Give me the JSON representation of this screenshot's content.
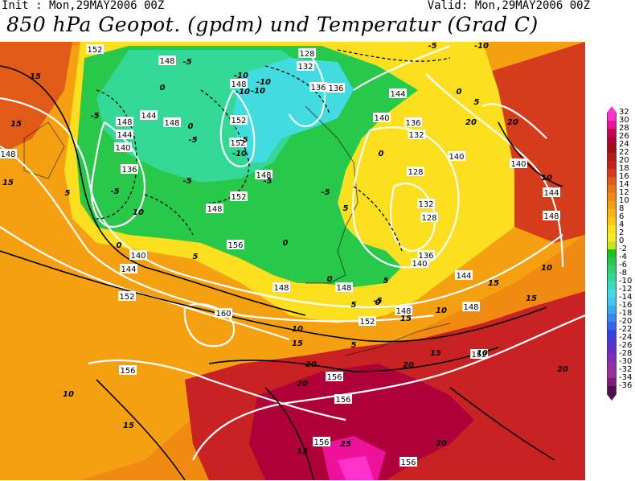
{
  "header": {
    "init": "Init : Mon,29MAY2006 00Z",
    "valid": "Valid: Mon,29MAY2006 00Z",
    "title": "850 hPa Geopot. (gpdm) und Temperatur (Grad C)"
  },
  "legend": {
    "labels": [
      "32",
      "30",
      "28",
      "26",
      "24",
      "22",
      "20",
      "18",
      "16",
      "14",
      "12",
      "10",
      "8",
      "6",
      "4",
      "2",
      "0",
      "-2",
      "-4",
      "-6",
      "-8",
      "-10",
      "-12",
      "-14",
      "-16",
      "-18",
      "-20",
      "-22",
      "-24",
      "-26",
      "-28",
      "-30",
      "-32",
      "-34",
      "-36"
    ],
    "colors": [
      "#ff33cc",
      "#ee1199",
      "#cc0055",
      "#b0003a",
      "#a01010",
      "#b81818",
      "#c82222",
      "#d43c1c",
      "#e05a18",
      "#ea7612",
      "#f08a10",
      "#f4a010",
      "#f8b414",
      "#fcc818",
      "#fce020",
      "#f0f020",
      "#c8e61e",
      "#20c020",
      "#28c84a",
      "#30d070",
      "#34d896",
      "#38dcbc",
      "#40dce0",
      "#40c8f0",
      "#3ca8f0",
      "#3888ee",
      "#3466ea",
      "#3044e6",
      "#4c34d8",
      "#6630c8",
      "#8030b8",
      "#9630a8",
      "#a02e98",
      "#7a1c7c",
      "#501050"
    ]
  },
  "map": {
    "gpdm_labels": [
      "152",
      "148",
      "148",
      "144",
      "140",
      "136",
      "144",
      "148",
      "148",
      "132",
      "128",
      "136",
      "136",
      "152",
      "152",
      "148",
      "148",
      "148",
      "152",
      "144",
      "140",
      "136",
      "132",
      "128",
      "132",
      "128",
      "136",
      "140",
      "148",
      "144",
      "140",
      "144",
      "148",
      "152",
      "148",
      "156",
      "160",
      "152",
      "148",
      "152",
      "156",
      "156",
      "156",
      "156",
      "156",
      "144",
      "148",
      "140",
      "140"
    ],
    "temp_labels": [
      "-5",
      "-10",
      "-5",
      "0",
      "-5",
      "-5",
      "-10",
      "-10",
      "0",
      "-5",
      "-10",
      "-10",
      "-5",
      "-5",
      "0",
      "5",
      "10",
      "15",
      "15",
      "15",
      "5",
      "0",
      "-5",
      "0",
      "5",
      "0",
      "5",
      "10",
      "10",
      "15",
      "20",
      "10",
      "15",
      "20",
      "15",
      "20",
      "20",
      "20",
      "25",
      "15",
      "20",
      "10",
      "15",
      "5",
      "0",
      "-10",
      "-5",
      "0",
      "5",
      "10",
      "15",
      "20",
      "15",
      "10",
      "5",
      "-5"
    ]
  }
}
